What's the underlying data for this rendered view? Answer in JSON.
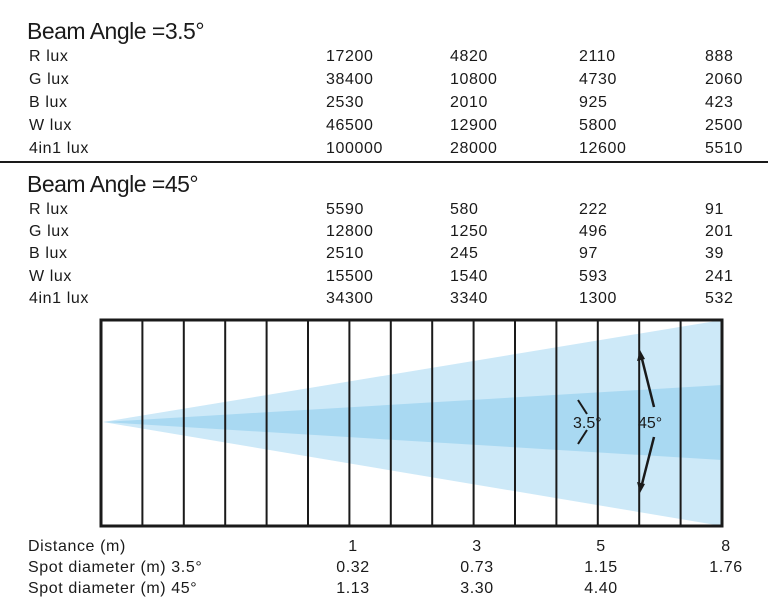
{
  "sections": [
    {
      "title": "Beam Angle =3.5°",
      "rows": [
        {
          "label": "R lux",
          "values": [
            "17200",
            "4820",
            "2110",
            "888"
          ]
        },
        {
          "label": "G lux",
          "values": [
            "38400",
            "10800",
            "4730",
            "2060"
          ]
        },
        {
          "label": "B lux",
          "values": [
            "2530",
            "2010",
            "925",
            "423"
          ]
        },
        {
          "label": "W lux",
          "values": [
            "46500",
            "12900",
            "5800",
            "2500"
          ]
        },
        {
          "label": "4in1 lux",
          "values": [
            "100000",
            "28000",
            "12600",
            "5510"
          ]
        }
      ]
    },
    {
      "title": "Beam Angle =45°",
      "rows": [
        {
          "label": "R lux",
          "values": [
            "5590",
            "580",
            "222",
            "91"
          ]
        },
        {
          "label": "G lux",
          "values": [
            "12800",
            "1250",
            "496",
            "201"
          ]
        },
        {
          "label": "B lux",
          "values": [
            "2510",
            "245",
            "97",
            "39"
          ]
        },
        {
          "label": "W lux",
          "values": [
            "15500",
            "1540",
            "593",
            "241"
          ]
        },
        {
          "label": "4in1 lux",
          "values": [
            "34300",
            "3340",
            "1300",
            "532"
          ]
        }
      ]
    }
  ],
  "diagram": {
    "narrow_angle_label": "3.5°",
    "wide_angle_label": "45°",
    "narrow_beam_color": "#a9d9f2",
    "wide_beam_color": "#cde9f8",
    "line_color": "#1a1a1a"
  },
  "bottom_table": {
    "rows": [
      {
        "label": "Distance (m)",
        "values": [
          "1",
          "3",
          "5",
          "8"
        ]
      },
      {
        "label": "Spot diameter (m) 3.5°",
        "values": [
          "0.32",
          "0.73",
          "1.15",
          "1.76"
        ]
      },
      {
        "label": "Spot diameter (m) 45°",
        "values": [
          "1.13",
          "3.30",
          "4.40",
          ""
        ]
      }
    ]
  }
}
